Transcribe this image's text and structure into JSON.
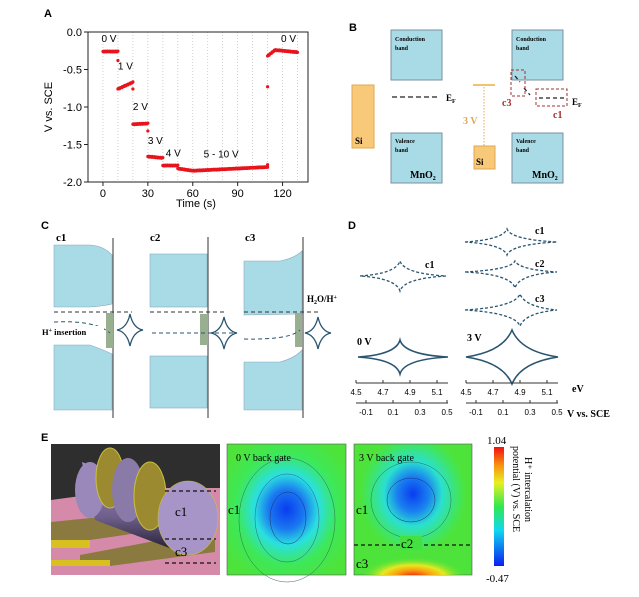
{
  "panel_labels": {
    "a": "A",
    "b": "B",
    "c": "C",
    "d": "D",
    "e": "E"
  },
  "chart_data": {
    "type": "scatter",
    "xlabel": "Time (s)",
    "ylabel": "V vs. SCE",
    "xlim": [
      -10,
      137
    ],
    "ylim": [
      -2.0,
      0.0
    ],
    "xticks": [
      0,
      30,
      60,
      90,
      120
    ],
    "yticks": [
      0.0,
      -0.5,
      -1.0,
      -1.5,
      -2.0
    ],
    "ytick_labels": [
      "0.0",
      "-0.5",
      "-1.0",
      "-1.5",
      "-2.0"
    ],
    "grid": "vertical dotted every 10 s",
    "color": "#e8141c",
    "segments": [
      {
        "t": [
          0,
          10
        ],
        "v": [
          -0.26,
          -0.26
        ]
      },
      {
        "t": [
          10,
          20
        ],
        "v": [
          -0.76,
          -0.67
        ]
      },
      {
        "t": [
          20,
          30
        ],
        "v": [
          -1.23,
          -1.22
        ]
      },
      {
        "t": [
          30,
          40
        ],
        "v": [
          -1.66,
          -1.68
        ]
      },
      {
        "t": [
          40,
          50
        ],
        "v": [
          -1.78,
          -1.78
        ]
      },
      {
        "t": [
          50,
          60
        ],
        "v": [
          -1.82,
          -1.85
        ]
      },
      {
        "t": [
          60,
          110
        ],
        "v": [
          -1.85,
          -1.8
        ]
      },
      {
        "t": [
          110,
          115
        ],
        "v": [
          -0.32,
          -0.24
        ]
      },
      {
        "t": [
          115,
          130
        ],
        "v": [
          -0.24,
          -0.27
        ]
      }
    ],
    "outliers": [
      [
        10,
        -0.38
      ],
      [
        20,
        -0.76
      ],
      [
        30,
        -1.32
      ],
      [
        110,
        -0.73
      ],
      [
        110,
        -1.77
      ]
    ],
    "annotations": [
      {
        "text": "0 V",
        "t": 4,
        "v": -0.13
      },
      {
        "text": "1 V",
        "t": 15,
        "v": -0.5
      },
      {
        "text": "2 V",
        "t": 25,
        "v": -1.04
      },
      {
        "text": "3 V",
        "t": 35,
        "v": -1.49
      },
      {
        "text": "4 V",
        "t": 47,
        "v": -1.66
      },
      {
        "text": "5 - 10 V",
        "t": 79,
        "v": -1.67
      },
      {
        "text": "0 V",
        "t": 124,
        "v": -0.13
      }
    ]
  },
  "panel_b": {
    "conduction_band": "Conduction",
    "conduction_band2": "band",
    "valence_band": "Valence",
    "valence_band2": "band",
    "mno2": "MnO",
    "mno2_sub": "2",
    "si": "Si",
    "ef": "E",
    "ef_sub": "F",
    "gate_voltage": "3 V",
    "c1": "c1",
    "c3": "c3"
  },
  "panel_c": {
    "c1": "c1",
    "c2": "c2",
    "c3": "c3",
    "h_insertion": "H",
    "h_insertion_sup": "+",
    "h_insertion_text": " insertion",
    "h2o_label": "H",
    "h2o_sub": "2",
    "h2o_rest": "O/H",
    "h2o_sup": "+"
  },
  "panel_d": {
    "c1": "c1",
    "c2": "c2",
    "c3": "c3",
    "zero_v": "0 V",
    "three_v": "3 V",
    "ev_ticks": [
      "4.5",
      "4.7",
      "4.9",
      "5.1"
    ],
    "v_ticks": [
      "-0.1",
      "0.1",
      "0.3",
      "0.5"
    ],
    "ev_label": "eV",
    "v_label": "V vs. SCE"
  },
  "panel_e": {
    "c1": "c1",
    "c2": "c2",
    "c3": "c3",
    "zero_gate": "0 V back gate",
    "three_gate": "3 V back gate",
    "cbar_max": "1.04",
    "cbar_min": "-0.47",
    "cbar_label1": "H⁺ intercalation",
    "cbar_label2": "potential (V) vs. SCE"
  }
}
